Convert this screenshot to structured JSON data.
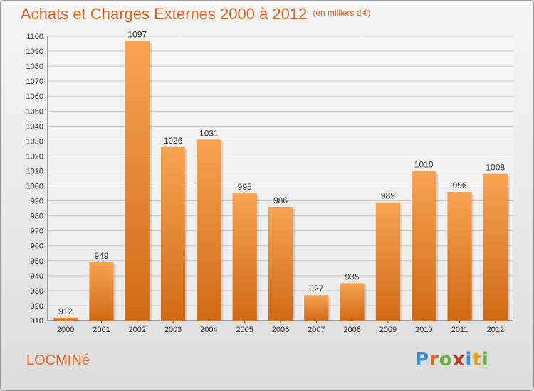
{
  "title": "Achats et Charges Externes 2000 à 2012",
  "subtitle": "(en milliers d'€)",
  "place": "LOCMINé",
  "brand": {
    "letters": [
      {
        "ch": "P",
        "color": "#3a8fd0"
      },
      {
        "ch": "r",
        "color": "#e2621f"
      },
      {
        "ch": "o",
        "color": "#6db33f"
      },
      {
        "ch": "x",
        "color": "#c0392b"
      },
      {
        "ch": "i",
        "color": "#3a8fd0"
      },
      {
        "ch": "t",
        "color": "#e8a317"
      },
      {
        "ch": "i",
        "color": "#6db33f"
      }
    ]
  },
  "chart_data": {
    "type": "bar",
    "title": "Achats et Charges Externes 2000 à 2012",
    "subtitle": "(en milliers d'€)",
    "categories": [
      "2000",
      "2001",
      "2002",
      "2003",
      "2004",
      "2005",
      "2006",
      "2007",
      "2008",
      "2009",
      "2010",
      "2011",
      "2012"
    ],
    "values": [
      912,
      949,
      1097,
      1026,
      1031,
      995,
      986,
      927,
      935,
      989,
      1010,
      996,
      1008
    ],
    "ylim": [
      910,
      1100
    ],
    "ytick_step": 10,
    "grid": true,
    "bar_color_top": "#f7a452",
    "bar_color_bottom": "#d06a14"
  }
}
